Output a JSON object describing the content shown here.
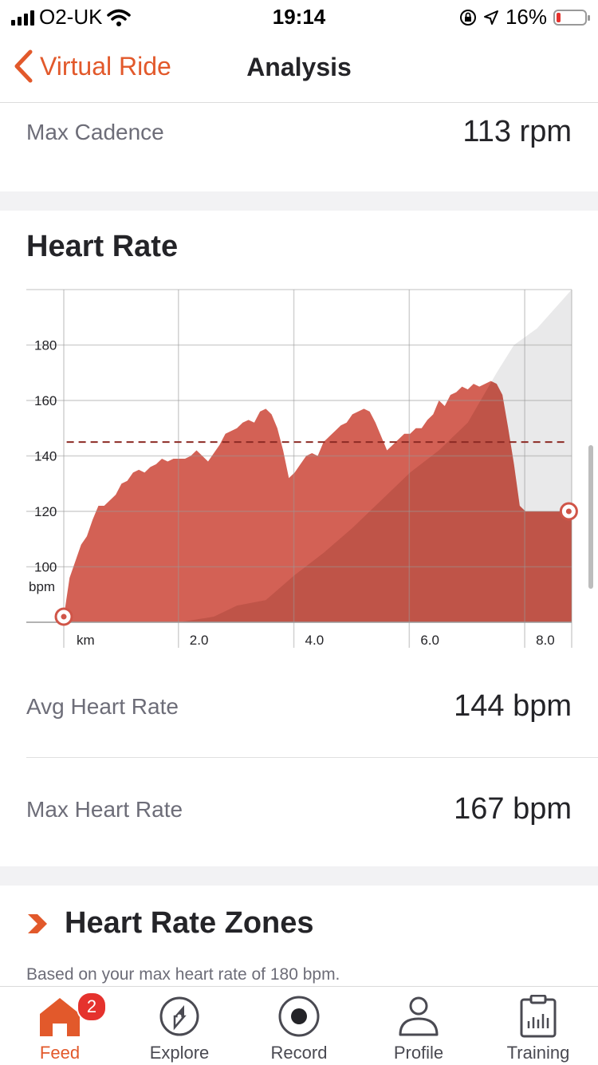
{
  "status": {
    "carrier": "O2-UK",
    "time": "19:14",
    "battery": "16%"
  },
  "nav": {
    "back_label": "Virtual Ride",
    "title": "Analysis"
  },
  "cadence": {
    "label": "Max Cadence",
    "value": "113 rpm"
  },
  "heart_rate": {
    "title": "Heart Rate",
    "avg_label": "Avg Heart Rate",
    "avg_value": "144 bpm",
    "max_label": "Max Heart Rate",
    "max_value": "167 bpm"
  },
  "zones": {
    "title": "Heart Rate Zones",
    "subtitle": "Based on your max heart rate of 180 bpm."
  },
  "tabs": [
    {
      "label": "Feed",
      "icon": "home-icon",
      "badge": "2",
      "active": true
    },
    {
      "label": "Explore",
      "icon": "compass-icon"
    },
    {
      "label": "Record",
      "icon": "record-icon"
    },
    {
      "label": "Profile",
      "icon": "profile-icon"
    },
    {
      "label": "Training",
      "icon": "training-icon"
    }
  ],
  "colors": {
    "accent": "#e2592b",
    "hr_fill": "#d05548",
    "elev_fill": "#e9e9ea",
    "avg_line": "#8c2a24"
  },
  "chart_data": {
    "type": "area",
    "y_unit_label": "bpm",
    "x_unit_label": "km",
    "x_ticks": [
      "2.0",
      "4.0",
      "6.0",
      "8.0"
    ],
    "y_ticks": [
      "100",
      "120",
      "140",
      "160",
      "180"
    ],
    "ylim": [
      80,
      200
    ],
    "xlim": [
      0,
      8.8
    ],
    "grid": true,
    "avg_line": 145,
    "series": [
      {
        "x": [
          0.0,
          0.1,
          0.3,
          0.4,
          0.5,
          0.6,
          0.7,
          0.9,
          1.0,
          1.1,
          1.2,
          1.3,
          1.4,
          1.5,
          1.6,
          1.7,
          1.8,
          1.9,
          2.0,
          2.1,
          2.2,
          2.3,
          2.4,
          2.5,
          2.6,
          2.7,
          2.8,
          2.9,
          3.0,
          3.1,
          3.2,
          3.3,
          3.4,
          3.5,
          3.6,
          3.7,
          3.8,
          3.9,
          4.0,
          4.1,
          4.2,
          4.3,
          4.4,
          4.5,
          4.6,
          4.7,
          4.8,
          4.9,
          5.0,
          5.1,
          5.2,
          5.3,
          5.4,
          5.5,
          5.6,
          5.7,
          5.8,
          5.9,
          6.0,
          6.1,
          6.2,
          6.3,
          6.4,
          6.5,
          6.6,
          6.7,
          6.8,
          6.9,
          7.0,
          7.1,
          7.2,
          7.3,
          7.4,
          7.5,
          7.6,
          7.7,
          7.8,
          7.9,
          8.0,
          8.1,
          8.2,
          8.3,
          8.4,
          8.5,
          8.6,
          8.8
        ],
        "values": [
          82,
          96,
          108,
          111,
          117,
          122,
          122,
          126,
          130,
          131,
          134,
          135,
          134,
          136,
          137,
          139,
          138,
          139,
          139,
          139,
          140,
          142,
          140,
          138,
          141,
          144,
          148,
          149,
          150,
          152,
          153,
          152,
          156,
          157,
          155,
          150,
          142,
          132,
          134,
          137,
          140,
          141,
          140,
          145,
          147,
          149,
          151,
          152,
          155,
          156,
          157,
          156,
          152,
          147,
          142,
          144,
          146,
          148,
          148,
          150,
          150,
          153,
          155,
          160,
          158,
          162,
          163,
          165,
          164,
          166,
          165,
          166,
          167,
          166,
          162,
          150,
          137,
          122,
          120,
          120,
          120,
          120,
          120,
          120,
          120,
          120
        ]
      }
    ]
  }
}
